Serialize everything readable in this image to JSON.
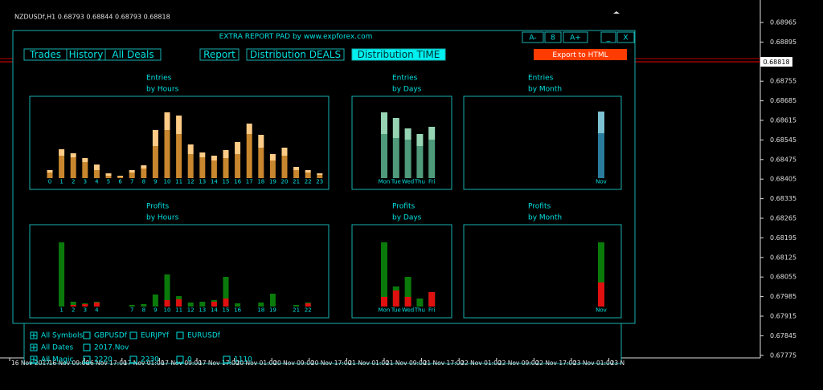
{
  "window": {
    "title": "NZDUSDf,H1 0.68793 0.68844 0.68793 0.68818",
    "current_price": "0.68818"
  },
  "price_axis": [
    "0.68965",
    "0.68895",
    "0.68755",
    "0.68685",
    "0.68615",
    "0.68545",
    "0.68475",
    "0.68405",
    "0.68335",
    "0.68265",
    "0.68195",
    "0.68125",
    "0.68055",
    "0.67985",
    "0.67915",
    "0.67845",
    "0.67775"
  ],
  "time_axis": [
    "16 Nov 2017",
    "16 Nov 09:00",
    "16 Nov 17:00",
    "17 Nov 01:00",
    "17 Nov 09:00",
    "17 Nov 17:00",
    "20 Nov 01:00",
    "20 Nov 09:00",
    "20 Nov 17:00",
    "21 Nov 01:00",
    "21 Nov 09:00",
    "21 Nov 17:00",
    "22 Nov 01:00",
    "22 Nov 09:00",
    "22 Nov 17:00",
    "23 Nov 01:00",
    "23 N"
  ],
  "panel": {
    "title": "EXTRA REPORT PAD by www.expforex.com",
    "buttons": [
      "A-",
      "8",
      "A+",
      "_",
      "X"
    ],
    "tabs": [
      "Trades",
      "History",
      "All Deals"
    ],
    "views": [
      "Report",
      "Distribution DEALS",
      "Distribution TIME"
    ],
    "export": "Export to HTML"
  },
  "charts": [
    {
      "title": [
        "Entries",
        "by Hours"
      ],
      "stacked": true,
      "categories": [
        "0",
        "1",
        "2",
        "3",
        "4",
        "5",
        "6",
        "7",
        "8",
        "9",
        "10",
        "11",
        "12",
        "13",
        "14",
        "15",
        "16",
        "17",
        "18",
        "19",
        "20",
        "21",
        "22",
        "23"
      ],
      "series": [
        {
          "color": "#c8862e",
          "values": [
            7,
            28,
            26,
            20,
            10,
            3,
            2,
            7,
            12,
            40,
            60,
            55,
            30,
            26,
            22,
            25,
            30,
            55,
            38,
            22,
            28,
            10,
            7,
            4
          ]
        },
        {
          "color": "#ffcc88",
          "values": [
            3,
            8,
            5,
            5,
            7,
            3,
            1,
            3,
            4,
            20,
            22,
            23,
            12,
            6,
            6,
            10,
            15,
            13,
            16,
            8,
            10,
            4,
            3,
            2
          ]
        }
      ]
    },
    {
      "title": [
        "Entries",
        "by Days"
      ],
      "stacked": true,
      "categories": [
        "Mon",
        "Tue",
        "Wed",
        "Thu",
        "Fri"
      ],
      "series": [
        {
          "color": "#4e9a7a",
          "values": [
            55,
            50,
            48,
            40,
            48
          ]
        },
        {
          "color": "#96d4b4",
          "values": [
            27,
            25,
            14,
            15,
            16
          ]
        }
      ]
    },
    {
      "title": [
        "Entries",
        "by Month"
      ],
      "stacked": true,
      "categories": [
        "Nov"
      ],
      "series": [
        {
          "color": "#2a7c9c",
          "values": [
            56
          ]
        },
        {
          "color": "#7cc2d2",
          "values": [
            27
          ]
        }
      ]
    },
    {
      "title": [
        "Profits",
        "by Hours"
      ],
      "stacked": false,
      "categories": [
        null,
        "1",
        "2",
        "3",
        "4",
        null,
        null,
        "7",
        "8",
        "9",
        "10",
        "11",
        "12",
        "13",
        "14",
        "15",
        "16",
        null,
        "18",
        "19",
        null,
        "21",
        "22",
        null
      ],
      "series": [
        {
          "color": "#0a7a0a",
          "values": [
            0,
            80,
            6,
            4,
            6,
            0,
            0,
            2,
            3,
            15,
            40,
            13,
            5,
            6,
            8,
            37,
            4,
            0,
            5,
            16,
            0,
            2,
            5,
            0
          ]
        },
        {
          "color": "#e01010",
          "values": [
            0,
            0,
            2,
            3,
            5,
            0,
            0,
            0,
            0,
            0,
            8,
            9,
            0,
            0,
            6,
            10,
            0,
            0,
            0,
            0,
            0,
            0,
            4,
            0
          ]
        }
      ]
    },
    {
      "title": [
        "Profits",
        "by Days"
      ],
      "stacked": false,
      "categories": [
        "Mon",
        "Tue",
        "Wed",
        "Thu",
        "Fri"
      ],
      "series": [
        {
          "color": "#0a7a0a",
          "values": [
            80,
            25,
            37,
            10,
            18
          ]
        },
        {
          "color": "#e01010",
          "values": [
            12,
            20,
            12,
            0,
            18
          ]
        }
      ]
    },
    {
      "title": [
        "Profits",
        "by Month"
      ],
      "stacked": false,
      "categories": [
        "Nov"
      ],
      "series": [
        {
          "color": "#0a7a0a",
          "values": [
            80
          ]
        },
        {
          "color": "#e01010",
          "values": [
            30
          ]
        }
      ]
    }
  ],
  "filters": {
    "rows": [
      [
        "All Symbols",
        "GBPUSDf",
        "EURJPYf",
        "EURUSDf"
      ],
      [
        "All Dates",
        "2017.Nov"
      ],
      [
        "All Magic",
        "2220",
        "2230",
        "0",
        "1110"
      ]
    ]
  }
}
